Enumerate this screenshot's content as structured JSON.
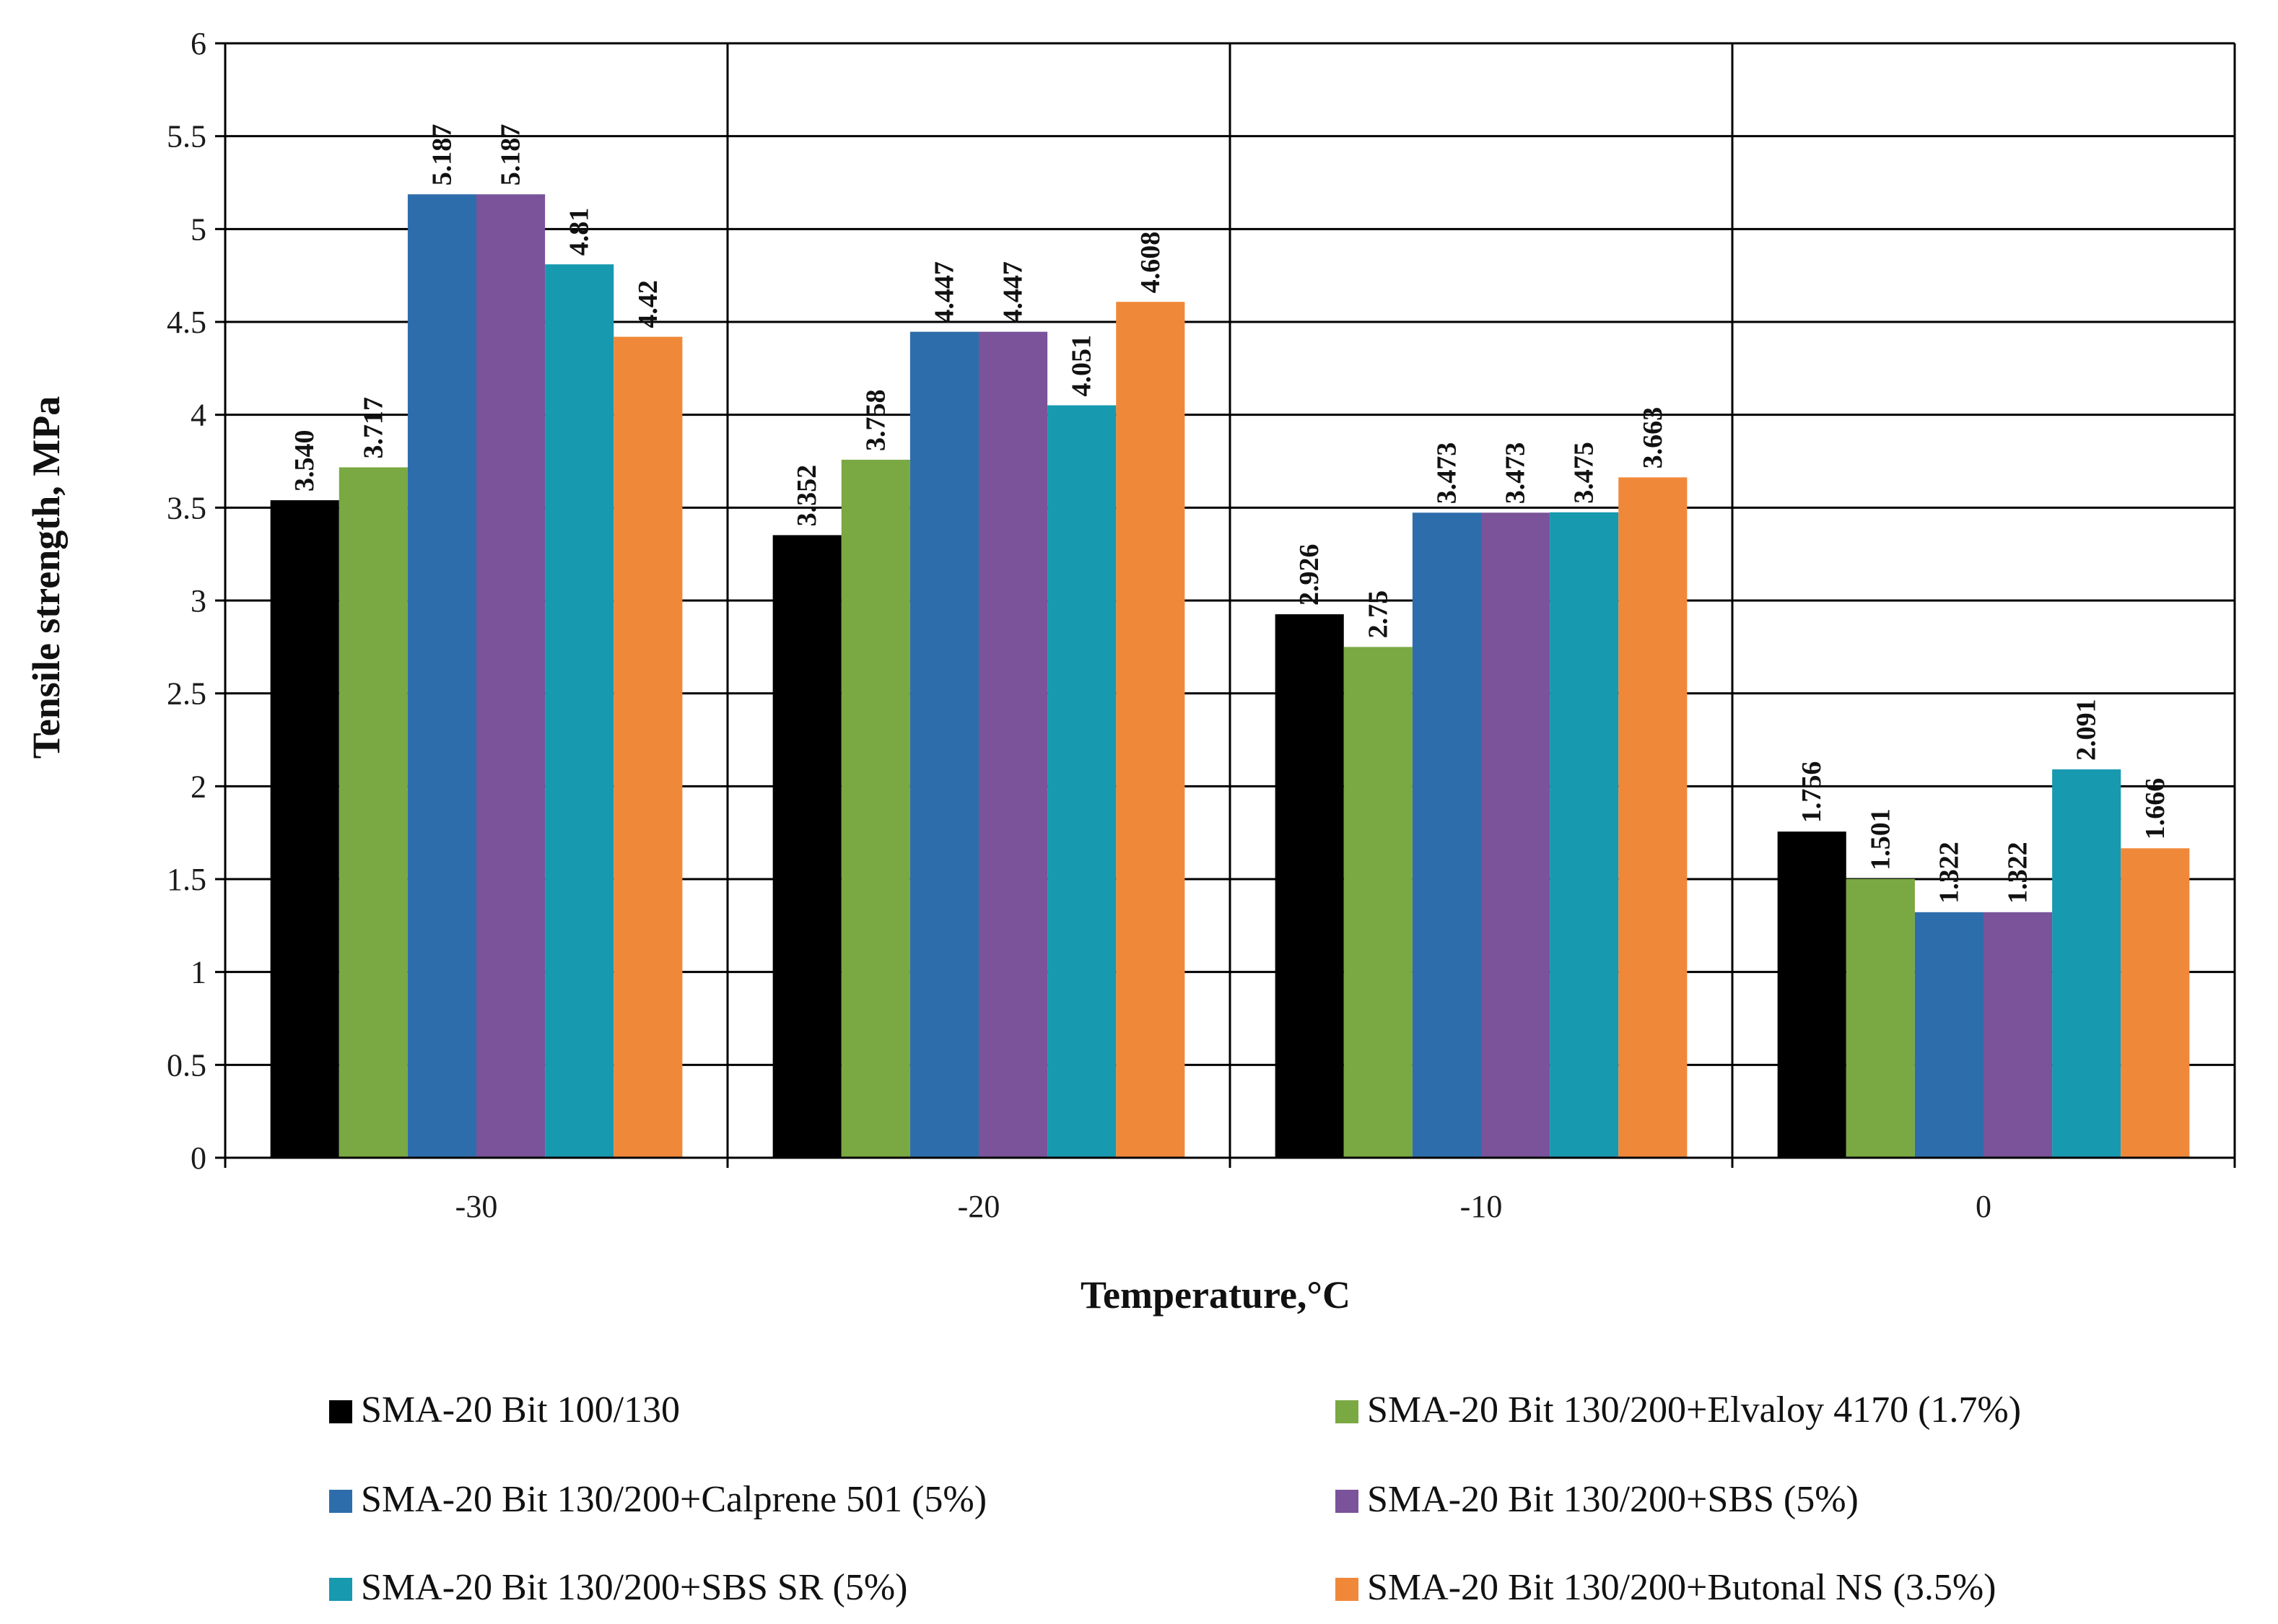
{
  "chart_data": {
    "type": "bar",
    "title": "",
    "xlabel": "Temperature,°C",
    "ylabel": "Tensile strength, MPa",
    "ylim": [
      0,
      6
    ],
    "yticks": [
      "0",
      "0.5",
      "1",
      "1.5",
      "2",
      "2.5",
      "3",
      "3.5",
      "4",
      "4.5",
      "5",
      "5.5",
      "6"
    ],
    "grid": true,
    "legend_position": "bottom",
    "categories": [
      "-30",
      "-20",
      "-10",
      "0"
    ],
    "series": [
      {
        "name": "SMA-20 Bit 100/130",
        "color": "#000000",
        "values": [
          3.54,
          3.352,
          2.926,
          1.756
        ],
        "labels": [
          "3.540",
          "3.352",
          "2.926",
          "1.756"
        ]
      },
      {
        "name": "SMA-20 Bit 130/200+Elvaloy 4170 (1.7%)",
        "color": "#7AA843",
        "values": [
          3.717,
          3.758,
          2.75,
          1.501
        ],
        "labels": [
          "3.717",
          "3.758",
          "2.75",
          "1.501"
        ]
      },
      {
        "name": "SMA-20 Bit 130/200+Calprene 501 (5%)",
        "color": "#2E6DAB",
        "values": [
          5.187,
          4.447,
          3.473,
          1.322
        ],
        "labels": [
          "5.187",
          "4.447",
          "3.473",
          "1.322"
        ]
      },
      {
        "name": "SMA-20 Bit 130/200+SBS (5%)",
        "color": "#7A539A",
        "values": [
          5.187,
          4.447,
          3.473,
          1.322
        ],
        "labels": [
          "5.187",
          "4.447",
          "3.473",
          "1.322"
        ]
      },
      {
        "name": "SMA-20 Bit 130/200+SBS SR (5%)",
        "color": "#1799B0",
        "values": [
          4.81,
          4.051,
          3.475,
          2.091
        ],
        "labels": [
          "4.81",
          "4.051",
          "3.475",
          "2.091"
        ]
      },
      {
        "name": "SMA-20 Bit 130/200+Butonal NS (3.5%)",
        "color": "#F0883A",
        "values": [
          4.42,
          4.608,
          3.663,
          1.666
        ],
        "labels": [
          "4.42",
          "4.608",
          "3.663",
          "1.666"
        ]
      }
    ]
  }
}
